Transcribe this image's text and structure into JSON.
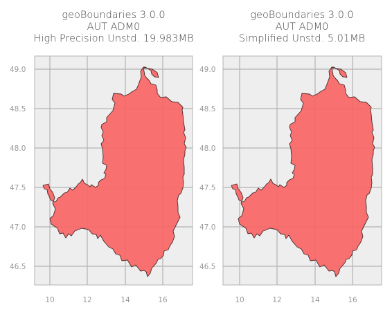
{
  "panels": [
    {
      "title_lines": [
        "geoBoundaries 3.0.0",
        "AUT ADM0",
        "High Precision Unstd. 19.983MB"
      ],
      "x_ticks": [
        "10",
        "12",
        "14",
        "16"
      ],
      "y_ticks": [
        "46.5",
        "47.0",
        "47.5",
        "48.0",
        "48.5",
        "49.0"
      ]
    },
    {
      "title_lines": [
        "geoBoundaries 3.0.0",
        "AUT ADM0",
        "Simplified Unstd. 5.01MB"
      ],
      "x_ticks": [
        "10",
        "12",
        "14",
        "16"
      ],
      "y_ticks": [
        "46.5",
        "47.0",
        "47.5",
        "48.0",
        "48.5",
        "49.0"
      ]
    }
  ],
  "colors": {
    "background": "#eeeeee",
    "grid": "#b3b3b3",
    "frame": "#b3b3b3",
    "fill": "#f96565",
    "outline": "#4a2a2a",
    "text": "#999999"
  }
}
